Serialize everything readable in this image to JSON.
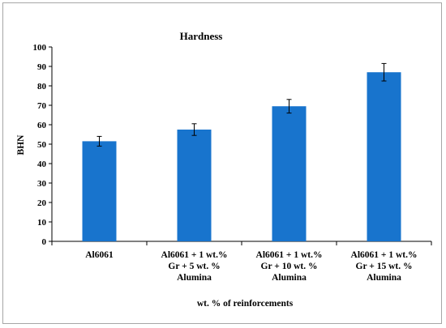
{
  "chart_data": {
    "type": "bar",
    "title": "Hardness",
    "xlabel": "wt. % of  reinforcements",
    "ylabel": "BHN",
    "ylim": [
      0,
      100
    ],
    "yticks": [
      0,
      10,
      20,
      30,
      40,
      50,
      60,
      70,
      80,
      90,
      100
    ],
    "grid": false,
    "legend": "none",
    "bar_color": "#1874cd",
    "categories": [
      [
        "Al6061"
      ],
      [
        "Al6061 + 1 wt.%",
        "Gr + 5 wt. %",
        "Alumina"
      ],
      [
        "Al6061 + 1 wt.%",
        "Gr + 10 wt. %",
        "Alumina"
      ],
      [
        "Al6061 + 1 wt.%",
        "Gr + 15 wt. %",
        "Alumina"
      ]
    ],
    "values": [
      51.5,
      57.5,
      69.5,
      87
    ],
    "errors": [
      2.5,
      3,
      3.5,
      4.5
    ]
  }
}
